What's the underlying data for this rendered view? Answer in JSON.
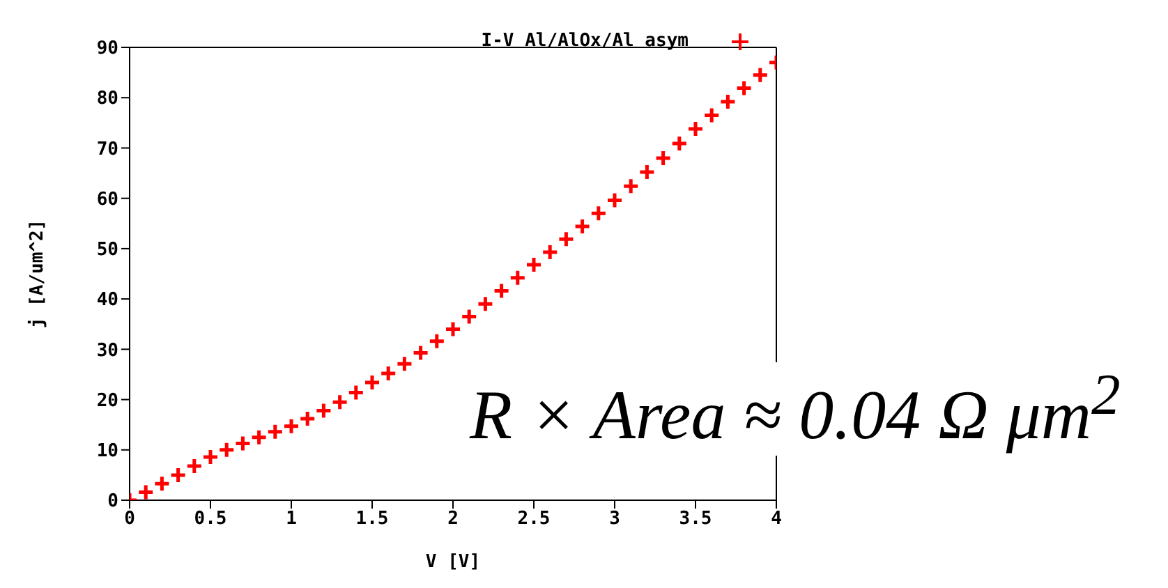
{
  "chart_data": {
    "type": "scatter",
    "xlabel": "V [V]",
    "ylabel": "j [A/um^2]",
    "x": [
      0,
      0.1,
      0.2,
      0.3,
      0.4,
      0.5,
      0.6,
      0.7,
      0.8,
      0.9,
      1.0,
      1.1,
      1.2,
      1.3,
      1.4,
      1.5,
      1.6,
      1.7,
      1.8,
      1.9,
      2.0,
      2.1,
      2.2,
      2.3,
      2.4,
      2.5,
      2.6,
      2.7,
      2.8,
      2.9,
      3.0,
      3.1,
      3.2,
      3.3,
      3.4,
      3.5,
      3.6,
      3.7,
      3.8,
      3.9,
      4.0
    ],
    "series": [
      {
        "name": "I-V Al/AlOx/Al asym",
        "color": "#ff0000",
        "values": [
          0,
          1.6,
          3.3,
          5.0,
          6.8,
          8.6,
          10.0,
          11.3,
          12.5,
          13.6,
          14.7,
          16.2,
          17.8,
          19.5,
          21.4,
          23.4,
          25.2,
          27.1,
          29.3,
          31.6,
          34.0,
          36.5,
          39.0,
          41.6,
          44.2,
          46.8,
          49.3,
          51.9,
          54.4,
          57.0,
          59.6,
          62.4,
          65.2,
          68.0,
          70.9,
          73.8,
          76.5,
          79.2,
          81.9,
          84.5,
          87
        ]
      }
    ],
    "xlim": [
      0,
      4
    ],
    "xticks": [
      0,
      0.5,
      1,
      1.5,
      2,
      2.5,
      3,
      3.5,
      4
    ],
    "ylim": [
      0,
      90
    ],
    "yticks": [
      0,
      10,
      20,
      30,
      40,
      50,
      60,
      70,
      80,
      90
    ],
    "marker": "cross",
    "grid": false,
    "legend": "top right",
    "annotations": [
      "R × Area ≈ 0.04 Ω μm$^{2}$"
    ]
  }
}
